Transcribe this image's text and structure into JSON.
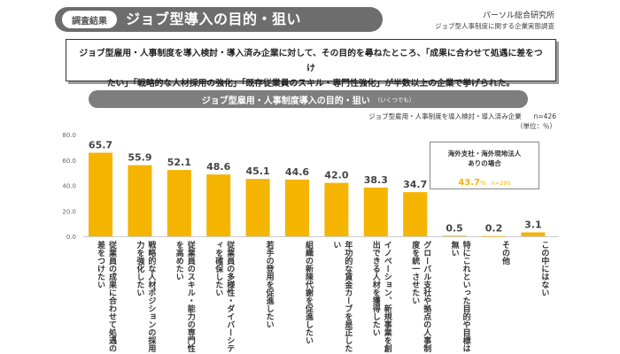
{
  "header": {
    "pill": "調査結果",
    "title": "ジョブ型導入の目的・狙い",
    "source_org": "パーソル総合研究所",
    "source_survey": "ジョブ型人事制度に関する企業実態調査"
  },
  "summary": {
    "line1": "ジョブ型雇用・人事制度を導入検討・導入済み企業に対して、その目的を尋ねたところ、「成果に合わせて処遇に差をつけ",
    "line2": "たい」「戦略的な人材採用の強化」「既存従業員のスキル・専門性強化」が半数以上の企業で挙げられた。"
  },
  "chart_header": {
    "title": "ジョブ型雇用・人事制度導入の目的・狙い",
    "title_note": "（いくつでも）",
    "base": "ジョブ型雇用・人事制度を導入検討・導入済み企業",
    "n": "n=426",
    "unit": "（単位：％）"
  },
  "callout": {
    "line1": "海外支社・海外現地法人",
    "line2": "ありの場合",
    "value": "43.7",
    "pct": "%",
    "n": "n=295"
  },
  "colors": {
    "bar": "#f5b400",
    "highlight": "#f5b400"
  },
  "chart_data": {
    "type": "bar",
    "categories": [
      "従業員の成果に合わせて処遇の差をつけたい",
      "戦略的な人材ポジションの採用力を強化したい",
      "従業員のスキル・能力の専門性を高めたい",
      "従業員の多様性・ダイバーシティを確保したい",
      "若手の登用を促進したい",
      "組織の新陳代謝を促進したい",
      "年功的な賃金カーブを是正したい",
      "イノベーション、新規事業を創出できる人材を獲得したい",
      "グローバル支社や拠点の人事制度を統一させたい",
      "特にこれといった目的や目標は無い",
      "その他",
      "この中にはない"
    ],
    "values": [
      65.7,
      55.9,
      52.1,
      48.6,
      45.1,
      44.6,
      42.0,
      38.3,
      34.7,
      0.5,
      0.2,
      3.1
    ],
    "value_labels": [
      "65.7",
      "55.9",
      "52.1",
      "48.6",
      "45.1",
      "44.6",
      "42.0",
      "38.3",
      "34.7",
      "0.5",
      "0.2",
      "3.1"
    ],
    "yticks": [
      "80.0",
      "60.0",
      "40.0",
      "20.0",
      "0.0"
    ],
    "ylim": [
      0,
      80
    ],
    "grid": false
  }
}
